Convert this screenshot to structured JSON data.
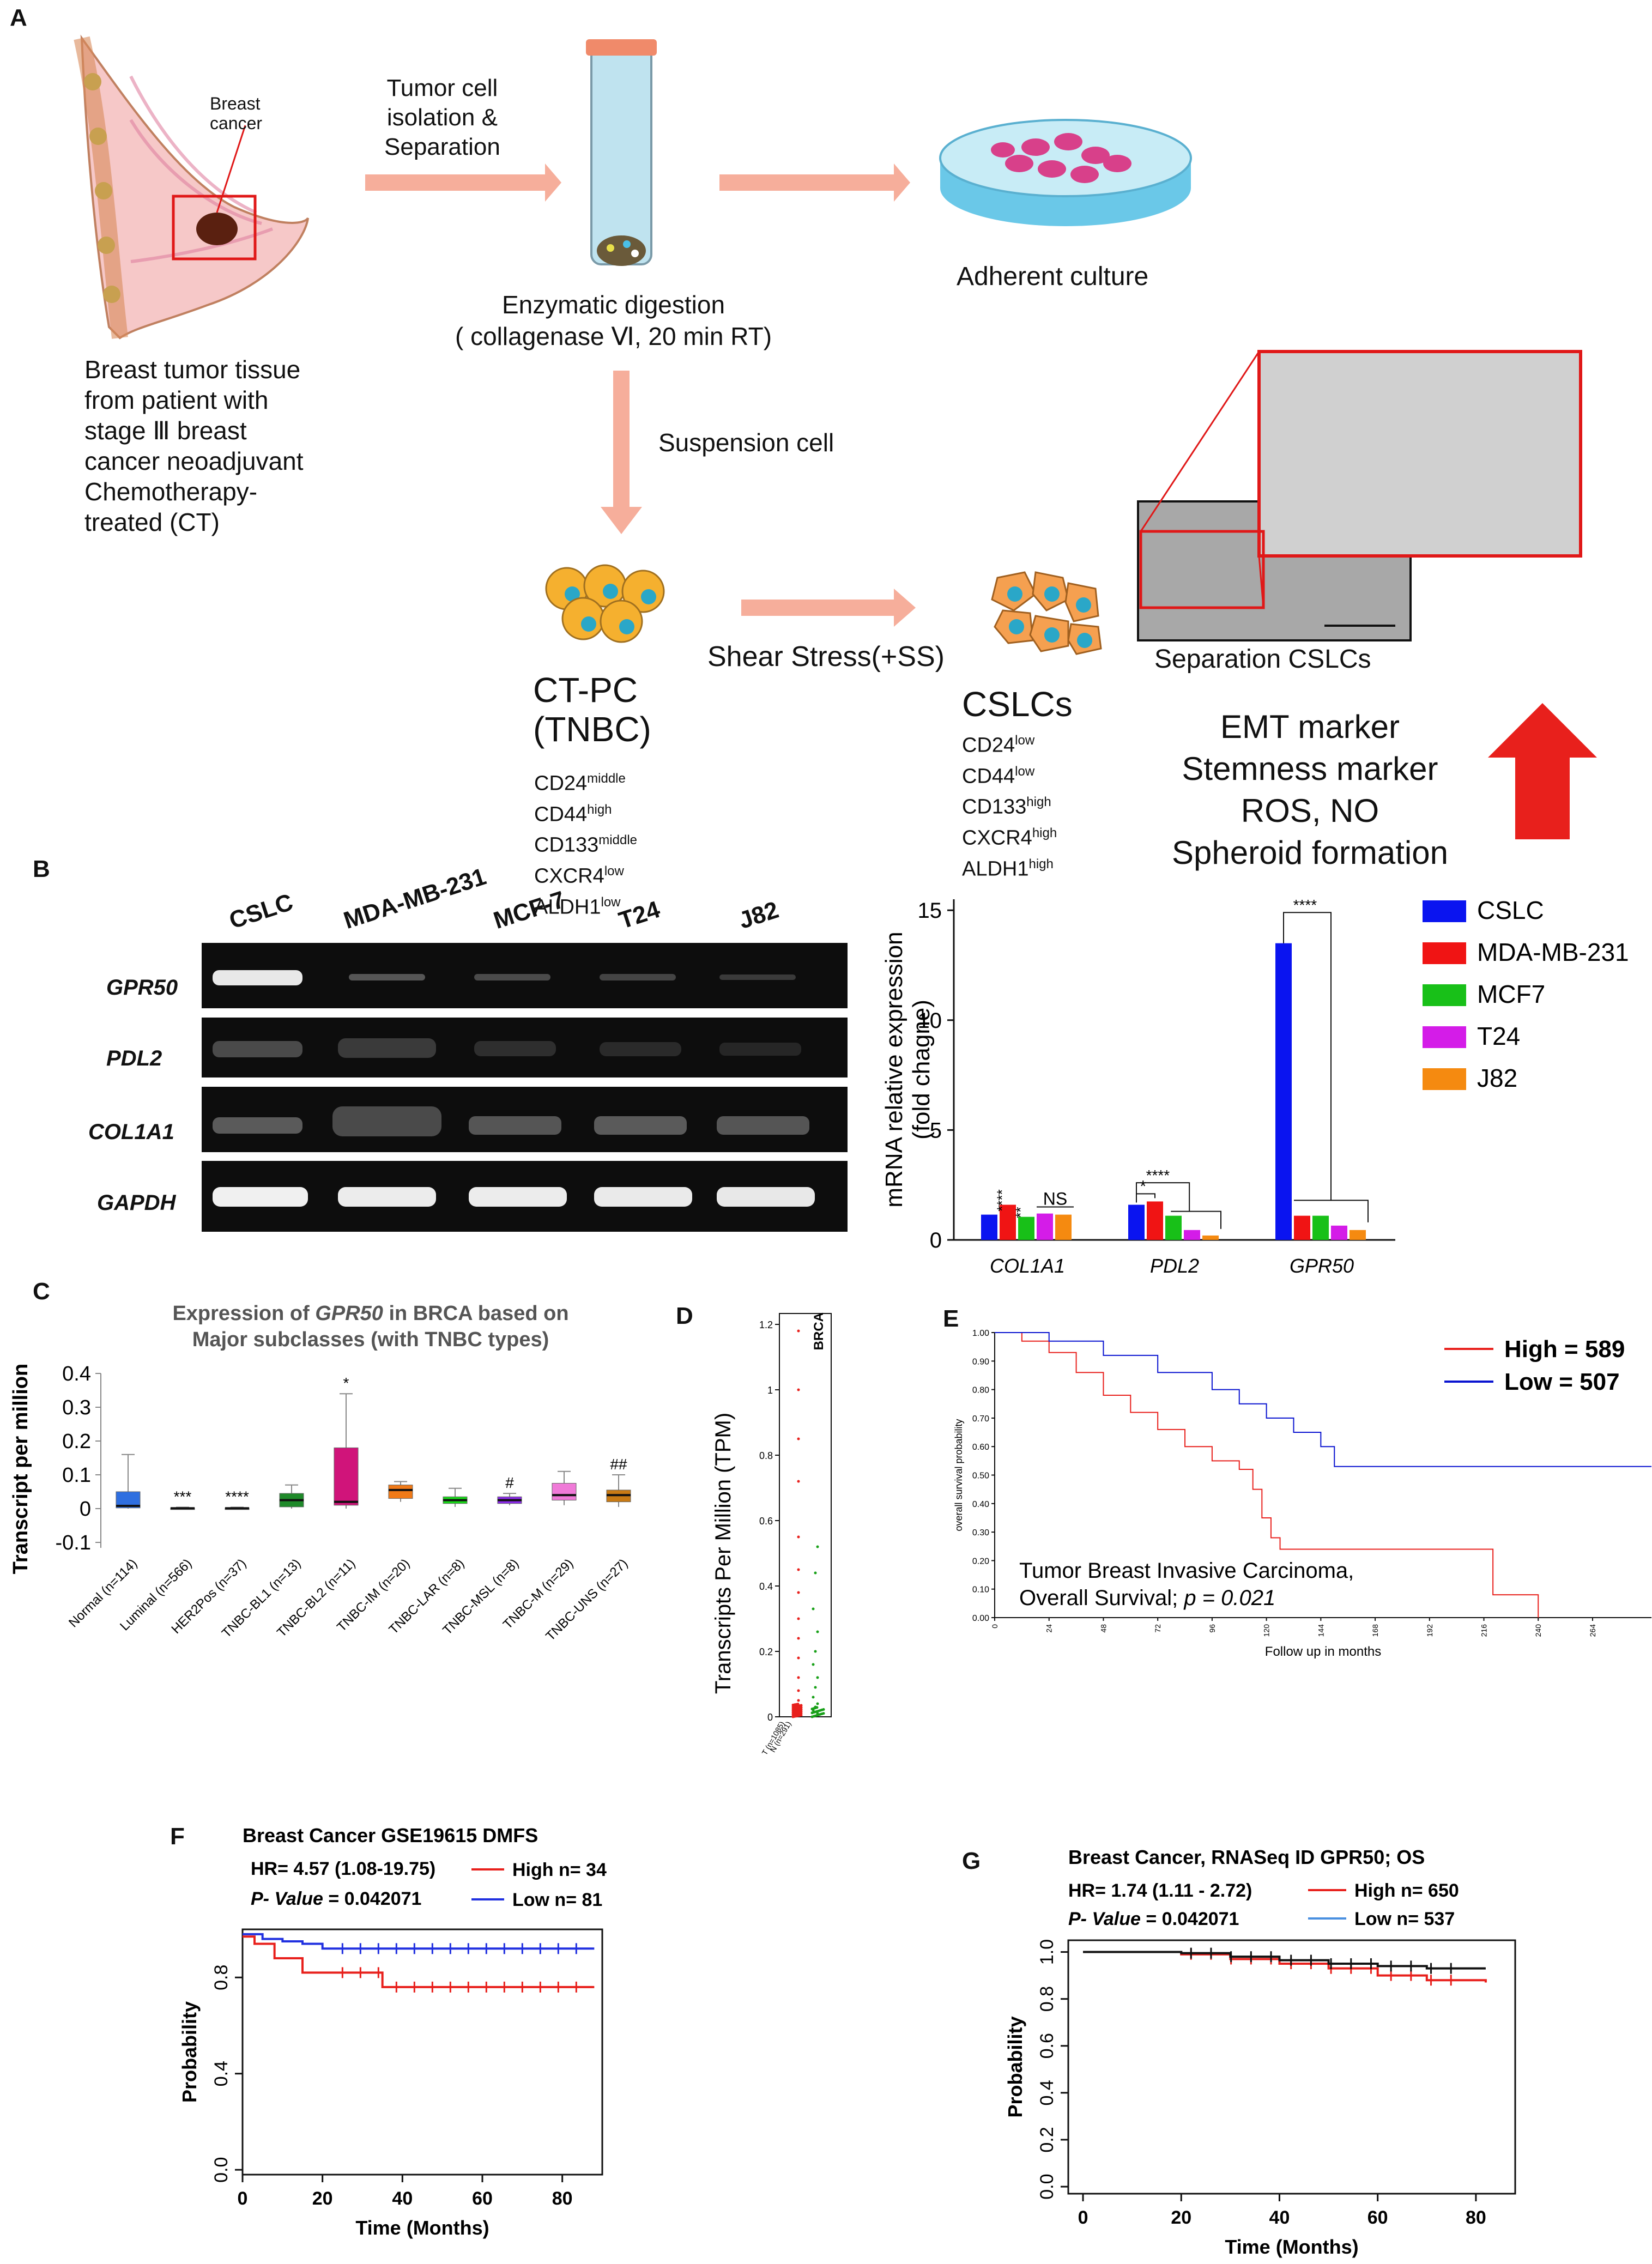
{
  "panels": {
    "A": "A",
    "B": "B",
    "C": "C",
    "D": "D",
    "E": "E",
    "F": "F",
    "G": "G"
  },
  "panel_a": {
    "breast_label_1": "Breast",
    "breast_label_2": "cancer",
    "tissue_desc": [
      "Breast tumor tissue",
      "from patient with",
      "stage Ⅲ breast",
      "cancer neoadjuvant",
      "Chemotherapy-",
      "treated (CT)"
    ],
    "step1": [
      "Tumor  cell",
      "isolation &",
      "Separation"
    ],
    "digestion": [
      "Enzymatic digestion",
      "( collagenase Ⅵ, 20 min RT)"
    ],
    "adherent": "Adherent culture",
    "suspension": "Suspension cell",
    "shear": "Shear Stress(+SS)",
    "ctpc_title": [
      "CT-PC",
      "(TNBC)"
    ],
    "ctpc_markers": [
      [
        "CD24",
        "middle"
      ],
      [
        "CD44",
        "high"
      ],
      [
        "CD133",
        "middle"
      ],
      [
        "CXCR4",
        "low"
      ],
      [
        "ALDH1",
        "low"
      ]
    ],
    "cslc_title": "CSLCs",
    "cslc_markers": [
      [
        "CD24",
        "low"
      ],
      [
        "CD44",
        "low"
      ],
      [
        "CD133",
        "high"
      ],
      [
        "CXCR4",
        "high"
      ],
      [
        "ALDH1",
        "high"
      ]
    ],
    "separation": "Separation CSLCs",
    "markers_up": [
      "EMT marker",
      "Stemness marker",
      "ROS, NO",
      "Spheroid formation"
    ],
    "colors": {
      "arrow": "#f4a08a",
      "big_arrow": "#e8201c",
      "cell": "#f5b02f",
      "nucleus": "#2aa7c8"
    }
  },
  "panel_b": {
    "lanes": [
      "CSLC",
      "MDA-MB-231",
      "MCF-7",
      "T24",
      "J82"
    ],
    "genes": [
      "GPR50",
      "PDL2",
      "COL1A1",
      "GAPDH"
    ]
  },
  "chart_data": [
    {
      "id": "B-bar",
      "type": "bar",
      "categories": [
        "COL1A1",
        "PDL2",
        "GPR50"
      ],
      "series": [
        {
          "name": "CSLC",
          "color": "#0a14f0",
          "values": [
            1.15,
            1.6,
            13.5
          ]
        },
        {
          "name": "MDA-MB-231",
          "color": "#f01414",
          "values": [
            1.6,
            1.75,
            1.1
          ]
        },
        {
          "name": "MCF7",
          "color": "#18c018",
          "values": [
            1.05,
            1.1,
            1.1
          ]
        },
        {
          "name": "T24",
          "color": "#d41ce8",
          "values": [
            1.2,
            0.45,
            0.65
          ]
        },
        {
          "name": "J82",
          "color": "#f58a10",
          "values": [
            1.15,
            0.2,
            0.45
          ]
        }
      ],
      "ylabel": [
        "mRNA relative expression",
        "(fold chagne)"
      ],
      "yticks": [
        0,
        5,
        10,
        15
      ],
      "ylim": [
        0,
        15.5
      ],
      "annotations": {
        "col1a1_star": "****",
        "col1a1_star2": "**",
        "col1a1_ns": "NS",
        "pdl2_star": "****",
        "pdl2_star2": "*",
        "gpr50_star": "****"
      }
    },
    {
      "id": "C-box",
      "type": "box",
      "title_pre": "Expression of ",
      "title_gene": "GPR50",
      "title_post": " in BRCA based on",
      "title_line2": "Major subclasses  (with TNBC types)",
      "ylabel": "Transcript per million",
      "yticks": [
        -0.1,
        0,
        0.1,
        0.2,
        0.3,
        0.4
      ],
      "ylim": [
        -0.1,
        0.4
      ],
      "categories": [
        "Normal (n=114)",
        "Luminal (n=566)",
        "HER2Pos (n=37)",
        "TNBC-BL1 (n=13)",
        "TNBC-BL2 (n=11)",
        "TNBC-IM (n=20)",
        "TNBC-LAR (n=8)",
        "TNBC-MSL (n=8)",
        "TNBC-M (n=29)",
        "TNBC-UNS (n=27)"
      ],
      "boxes": [
        {
          "min": 0,
          "q1": 0.002,
          "med": 0.008,
          "q3": 0.05,
          "max": 0.16,
          "color": "#2f6fe0"
        },
        {
          "min": 0,
          "q1": 0,
          "med": 0.001,
          "q3": 0.002,
          "max": 0.004,
          "color": "#444444"
        },
        {
          "min": 0,
          "q1": 0,
          "med": 0.001,
          "q3": 0.002,
          "max": 0.004,
          "color": "#444444"
        },
        {
          "min": 0,
          "q1": 0.005,
          "med": 0.025,
          "q3": 0.045,
          "max": 0.07,
          "color": "#1f8a2a"
        },
        {
          "min": 0,
          "q1": 0.01,
          "med": 0.02,
          "q3": 0.18,
          "max": 0.34,
          "color": "#d0147a"
        },
        {
          "min": 0.02,
          "q1": 0.03,
          "med": 0.055,
          "q3": 0.07,
          "max": 0.08,
          "color": "#f07a18"
        },
        {
          "min": 0.005,
          "q1": 0.015,
          "med": 0.025,
          "q3": 0.035,
          "max": 0.06,
          "color": "#18d818"
        },
        {
          "min": 0.01,
          "q1": 0.015,
          "med": 0.025,
          "q3": 0.035,
          "max": 0.045,
          "color": "#8a2ae8"
        },
        {
          "min": 0.01,
          "q1": 0.025,
          "med": 0.04,
          "q3": 0.075,
          "max": 0.11,
          "color": "#f07ad8"
        },
        {
          "min": 0.005,
          "q1": 0.02,
          "med": 0.04,
          "q3": 0.055,
          "max": 0.1,
          "color": "#c87a14"
        }
      ],
      "sig": [
        "",
        "***",
        "****",
        "",
        "*",
        "",
        "",
        "#",
        "",
        "##"
      ]
    },
    {
      "id": "D-dot",
      "type": "scatter",
      "title": "BRCA",
      "ylabel": "Transcripts Per Million (TPM)",
      "yticks": [
        0,
        0.2,
        0.4,
        0.6,
        0.8,
        1,
        1.2
      ],
      "ylim": [
        0,
        1.2
      ],
      "categories": [
        "T (n=1085)",
        "N (n=291)"
      ],
      "series": [
        {
          "name": "T (n=1085)",
          "color": "#e8201c"
        },
        {
          "name": "N (n=291)",
          "color": "#18a018"
        }
      ]
    },
    {
      "id": "E-km",
      "type": "line",
      "ylabel": "overall survival probability",
      "xlabel": "Follow up in months",
      "yticks": [
        0,
        0.1,
        0.2,
        0.3,
        0.4,
        0.5,
        0.6,
        0.7,
        0.8,
        0.9,
        1.0
      ],
      "xticks": [
        0,
        24,
        48,
        72,
        96,
        120,
        144,
        168,
        192,
        216,
        240,
        264
      ],
      "xlim": [
        0,
        290
      ],
      "ylim": [
        0,
        1
      ],
      "legend": [
        "High = 589",
        "Low  = 507"
      ],
      "annotation": [
        "Tumor Breast Invasive Carcinoma,",
        "Overall Survival; "
      ],
      "pvalue": "p = 0.021",
      "series": [
        {
          "name": "High",
          "color": "#e8201c",
          "x": [
            0,
            12,
            24,
            36,
            48,
            60,
            72,
            84,
            96,
            108,
            114,
            118,
            122,
            126,
            132,
            144,
            168,
            192,
            214,
            220,
            236,
            240
          ],
          "y": [
            1.0,
            0.97,
            0.93,
            0.86,
            0.78,
            0.72,
            0.66,
            0.6,
            0.55,
            0.52,
            0.45,
            0.35,
            0.28,
            0.24,
            0.24,
            0.24,
            0.24,
            0.24,
            0.24,
            0.08,
            0.08,
            0
          ]
        },
        {
          "name": "Low",
          "color": "#0a14d0",
          "x": [
            0,
            24,
            48,
            72,
            96,
            108,
            120,
            132,
            144,
            150,
            156,
            192,
            240,
            290
          ],
          "y": [
            1.0,
            0.97,
            0.92,
            0.86,
            0.8,
            0.75,
            0.7,
            0.65,
            0.6,
            0.53,
            0.53,
            0.53,
            0.53,
            0.53
          ]
        }
      ]
    },
    {
      "id": "F-km",
      "type": "line",
      "title": "Breast Cancer GSE19615  DMFS",
      "hr": "HR= 4.57 (1.08-19.75)",
      "pvalue_label": "P- Value",
      "pvalue": " = 0.042071",
      "legend": [
        "High n= 34",
        "Low n= 81"
      ],
      "ylabel": "Probability",
      "xlabel": "Time (Months)",
      "xticks": [
        0,
        20,
        40,
        60,
        80
      ],
      "yticks": [
        "0.0",
        "0.4",
        "0.8"
      ],
      "yvals": [
        0,
        0.4,
        0.8
      ],
      "xlim": [
        0,
        90
      ],
      "ylim": [
        -0.02,
        1.0
      ],
      "series": [
        {
          "name": "High",
          "color": "#e8201c",
          "x": [
            0,
            3,
            8,
            15,
            20,
            35,
            88
          ],
          "y": [
            0.97,
            0.94,
            0.88,
            0.82,
            0.82,
            0.76,
            0.76
          ]
        },
        {
          "name": "Low",
          "color": "#2030e0",
          "x": [
            0,
            5,
            10,
            15,
            20,
            88
          ],
          "y": [
            0.98,
            0.96,
            0.95,
            0.94,
            0.92,
            0.92
          ]
        }
      ]
    },
    {
      "id": "G-km",
      "type": "line",
      "title": "Breast Cancer, RNASeq ID GPR50; OS",
      "hr": "HR= 1.74 (1.11 - 2.72)",
      "pvalue_label": "P- Value",
      "pvalue": " = 0.042071",
      "legend": [
        "High n= 650",
        "Low n= 537"
      ],
      "ylabel": "Probability",
      "xlabel": "Time (Months)",
      "xticks": [
        0,
        20,
        40,
        60,
        80
      ],
      "yticks": [
        "0.0",
        "0.2",
        "0.4",
        "0.6",
        "0.8",
        "1.0"
      ],
      "yvals": [
        0,
        0.2,
        0.4,
        0.6,
        0.8,
        1.0
      ],
      "xlim": [
        -3,
        88
      ],
      "ylim": [
        -0.03,
        1.05
      ],
      "series": [
        {
          "name": "High",
          "color": "#e8201c",
          "x": [
            0,
            20,
            30,
            40,
            50,
            60,
            70,
            82
          ],
          "y": [
            1.0,
            0.99,
            0.97,
            0.95,
            0.93,
            0.9,
            0.88,
            0.87
          ]
        },
        {
          "name": "Low",
          "color": "#111111",
          "x": [
            0,
            20,
            30,
            40,
            50,
            60,
            70,
            82
          ],
          "y": [
            1.0,
            0.995,
            0.98,
            0.965,
            0.95,
            0.94,
            0.93,
            0.93
          ]
        }
      ]
    }
  ]
}
